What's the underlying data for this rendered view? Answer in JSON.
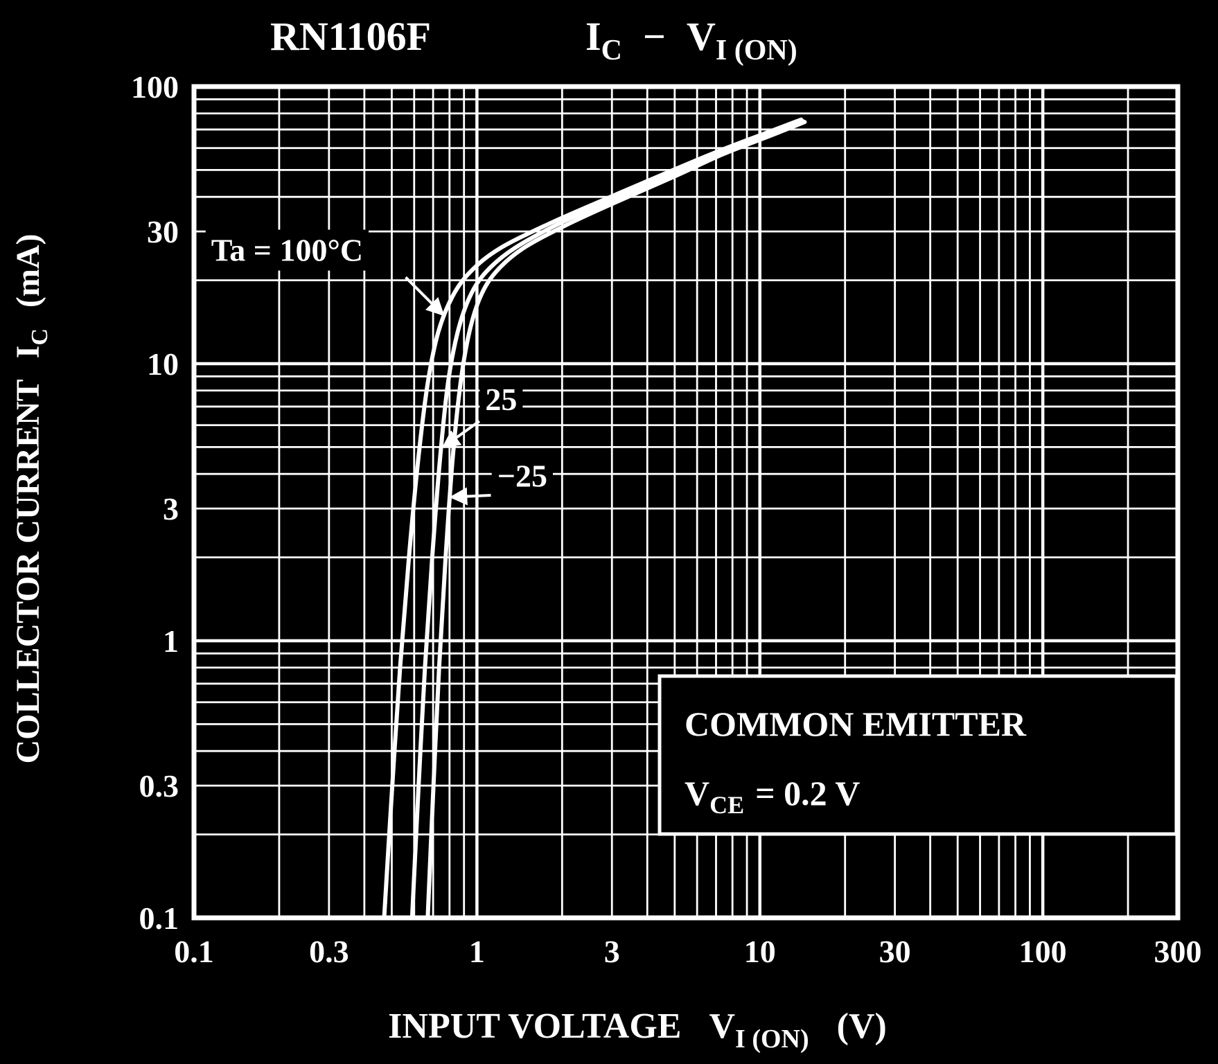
{
  "title": {
    "device": "RN1106F",
    "y_sym": "I",
    "y_sub": "C",
    "dash": "−",
    "x_sym": "V",
    "x_sub": "I (ON)"
  },
  "y_axis": {
    "label": "COLLECTOR CURRENT",
    "sym": "I",
    "sub": "C",
    "unit": "(mA)",
    "ticks": [
      0.1,
      0.3,
      1,
      3,
      10,
      30,
      100
    ],
    "tick_labels": [
      "0.1",
      "0.3",
      "1",
      "3",
      "10",
      "30",
      "100"
    ]
  },
  "x_axis": {
    "label": "INPUT VOLTAGE",
    "sym": "V",
    "sub": "I (ON)",
    "unit": "(V)",
    "ticks": [
      0.1,
      0.3,
      1,
      3,
      10,
      30,
      100,
      300
    ],
    "tick_labels": [
      "0.1",
      "0.3",
      "1",
      "3",
      "10",
      "30",
      "100",
      "300"
    ]
  },
  "note_box": {
    "line1": "COMMON EMITTER",
    "sym": "V",
    "sub": "CE",
    "value": "= 0.2 V"
  },
  "chart_data": {
    "type": "line",
    "x_scale": "log",
    "y_scale": "log",
    "xlim": [
      0.1,
      300
    ],
    "ylim": [
      0.1,
      100
    ],
    "grid": true,
    "xlabel": "INPUT VOLTAGE VI(ON) (V)",
    "ylabel": "COLLECTOR CURRENT IC (mA)",
    "title": "RN1106F  IC − VI(ON)",
    "condition": "COMMON EMITTER, VCE = 0.2 V",
    "series": [
      {
        "name": "Ta = 100°C",
        "points": [
          [
            0.47,
            0.1
          ],
          [
            0.5,
            0.28
          ],
          [
            0.535,
            0.8
          ],
          [
            0.575,
            2.0
          ],
          [
            0.62,
            4.5
          ],
          [
            0.67,
            8.5
          ],
          [
            0.73,
            13
          ],
          [
            0.82,
            17.5
          ],
          [
            0.95,
            21.5
          ],
          [
            1.2,
            26
          ],
          [
            1.8,
            32
          ],
          [
            2.8,
            39
          ],
          [
            4.5,
            48
          ],
          [
            7.0,
            58
          ],
          [
            10.5,
            68
          ],
          [
            14.0,
            76
          ]
        ]
      },
      {
        "name": "25",
        "points": [
          [
            0.59,
            0.1
          ],
          [
            0.62,
            0.28
          ],
          [
            0.655,
            0.8
          ],
          [
            0.695,
            2.0
          ],
          [
            0.74,
            4.5
          ],
          [
            0.79,
            8.5
          ],
          [
            0.855,
            13
          ],
          [
            0.945,
            17.5
          ],
          [
            1.08,
            21.5
          ],
          [
            1.35,
            26
          ],
          [
            1.95,
            32
          ],
          [
            2.95,
            38.5
          ],
          [
            4.7,
            47.5
          ],
          [
            7.2,
            57.5
          ],
          [
            10.7,
            67
          ],
          [
            14.2,
            75
          ]
        ]
      },
      {
        "name": "−25",
        "points": [
          [
            0.67,
            0.1
          ],
          [
            0.7,
            0.28
          ],
          [
            0.735,
            0.8
          ],
          [
            0.775,
            2.0
          ],
          [
            0.82,
            4.5
          ],
          [
            0.875,
            8.5
          ],
          [
            0.94,
            13
          ],
          [
            1.03,
            17.5
          ],
          [
            1.17,
            21.5
          ],
          [
            1.45,
            26
          ],
          [
            2.05,
            31.5
          ],
          [
            3.05,
            38
          ],
          [
            4.9,
            47
          ],
          [
            7.4,
            57
          ],
          [
            10.9,
            66.5
          ],
          [
            14.4,
            74.5
          ]
        ]
      }
    ],
    "annotations": [
      {
        "label": "Ta = 100°C",
        "text_x": 0.115,
        "text_y": 23.5,
        "line": [
          [
            0.56,
            20.5
          ],
          [
            0.76,
            15.0
          ]
        ]
      },
      {
        "label": "25",
        "text_x": 1.07,
        "text_y": 6.8,
        "line": [
          [
            1.02,
            6.2
          ],
          [
            0.76,
            5.0
          ]
        ]
      },
      {
        "label": "−25",
        "text_x": 1.18,
        "text_y": 3.6,
        "line": [
          [
            1.12,
            3.35
          ],
          [
            0.81,
            3.3
          ]
        ]
      }
    ],
    "colors": {
      "background": "#000000",
      "foreground": "#ffffff"
    }
  }
}
